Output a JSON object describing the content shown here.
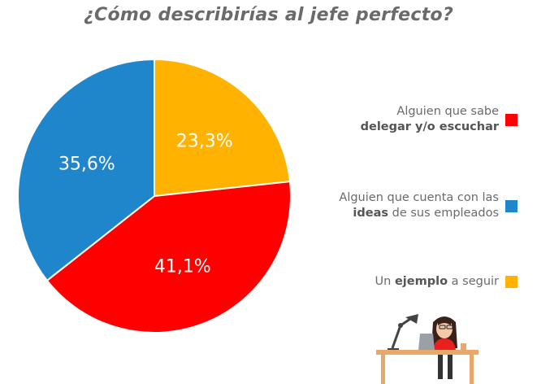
{
  "chart_data": {
    "type": "pie",
    "title": "¿Cómo describirías al jefe perfecto?",
    "slices": [
      {
        "label_parts": [
          "Alguien que sabe",
          "delegar y/o escuchar"
        ],
        "value": 41.1,
        "display": "41,1%",
        "color": "#ff0000"
      },
      {
        "label_parts": [
          "Alguien que cuenta con las",
          "ideas",
          "de sus empleados"
        ],
        "value": 35.6,
        "display": "35,6%",
        "color": "#1f86cc"
      },
      {
        "label_parts": [
          "Un",
          "ejemplo",
          "a seguir"
        ],
        "value": 23.3,
        "display": "23,3%",
        "color": "#ffb300"
      }
    ],
    "legend_position": "right",
    "legend_order": [
      0,
      1,
      2
    ]
  },
  "illustration": {
    "icon": "woman-at-desk-icon",
    "colors": {
      "desk": "#e8a86a",
      "shirt": "#e82020",
      "hair": "#3a2218",
      "lamp": "#444444",
      "laptop": "#9aa0a6"
    }
  }
}
